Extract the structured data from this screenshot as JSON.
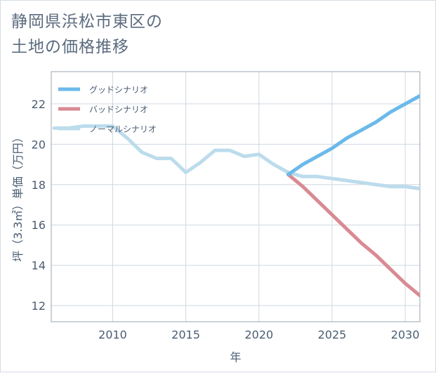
{
  "chart_data": {
    "type": "line",
    "title": [
      "静岡県浜松市東区の",
      "土地の価格推移"
    ],
    "xlabel": "年",
    "ylabel": "坪（3.3㎡）単価（万円）",
    "xlim": [
      2005.8,
      2031
    ],
    "ylim": [
      11.2,
      23.6
    ],
    "xticks": [
      2010,
      2015,
      2020,
      2025,
      2030
    ],
    "yticks": [
      12,
      14,
      16,
      18,
      20,
      22
    ],
    "grid": true,
    "legend_position": "top-left",
    "series": [
      {
        "name": "グッドシナリオ",
        "color": "#6bb9ea",
        "x": [
          2022,
          2023,
          2024,
          2025,
          2026,
          2027,
          2028,
          2029,
          2030,
          2031
        ],
        "y": [
          18.5,
          19.0,
          19.4,
          19.8,
          20.3,
          20.7,
          21.1,
          21.6,
          22.0,
          22.4
        ]
      },
      {
        "name": "バッドシナリオ",
        "color": "#d98a93",
        "x": [
          2022,
          2023,
          2024,
          2025,
          2026,
          2027,
          2028,
          2029,
          2030,
          2031
        ],
        "y": [
          18.5,
          17.9,
          17.2,
          16.5,
          15.8,
          15.1,
          14.5,
          13.8,
          13.1,
          12.5
        ]
      },
      {
        "name": "ノーマルシナリオ",
        "color": "#bcdcec",
        "x": [
          2006,
          2007,
          2008,
          2009,
          2010,
          2011,
          2012,
          2013,
          2014,
          2015,
          2016,
          2017,
          2018,
          2019,
          2020,
          2021,
          2022,
          2023,
          2024,
          2025,
          2026,
          2027,
          2028,
          2029,
          2030,
          2031
        ],
        "y": [
          20.8,
          20.8,
          20.9,
          20.9,
          20.9,
          20.3,
          19.6,
          19.3,
          19.3,
          18.6,
          19.1,
          19.7,
          19.7,
          19.4,
          19.5,
          19.0,
          18.6,
          18.4,
          18.4,
          18.3,
          18.2,
          18.1,
          18.0,
          17.9,
          17.9,
          17.8
        ]
      }
    ]
  }
}
